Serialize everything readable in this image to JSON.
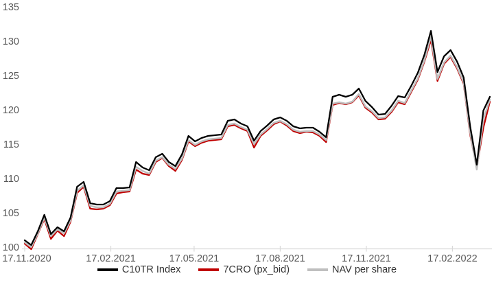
{
  "chart_data": {
    "type": "line",
    "title": "",
    "xlabel": "",
    "ylabel": "",
    "ylim": [
      100,
      135
    ],
    "y_ticks": [
      100,
      105,
      110,
      115,
      120,
      125,
      130,
      135
    ],
    "grid": false,
    "legend_position": "bottom",
    "x_axis": {
      "tick_labels": [
        "17.11.2020",
        "17.02.2021",
        "17.05.2021",
        "17.08.2021",
        "17.11.2021",
        "17.02.2022"
      ],
      "tick_day_offsets": [
        0,
        92,
        181,
        273,
        365,
        457
      ],
      "total_days": 497
    },
    "x_dates": [
      "17.11.2020",
      "24.11.2020",
      "01.12.2020",
      "08.12.2020",
      "15.12.2020",
      "22.12.2020",
      "29.12.2020",
      "05.01.2021",
      "12.01.2021",
      "19.01.2021",
      "26.01.2021",
      "02.02.2021",
      "09.02.2021",
      "16.02.2021",
      "23.02.2021",
      "02.03.2021",
      "09.03.2021",
      "16.03.2021",
      "23.03.2021",
      "30.03.2021",
      "06.04.2021",
      "13.04.2021",
      "20.04.2021",
      "27.04.2021",
      "04.05.2021",
      "11.05.2021",
      "18.05.2021",
      "25.05.2021",
      "01.06.2021",
      "08.06.2021",
      "15.06.2021",
      "22.06.2021",
      "29.06.2021",
      "06.07.2021",
      "13.07.2021",
      "20.07.2021",
      "27.07.2021",
      "03.08.2021",
      "10.08.2021",
      "17.08.2021",
      "24.08.2021",
      "31.08.2021",
      "07.09.2021",
      "14.09.2021",
      "21.09.2021",
      "28.09.2021",
      "05.10.2021",
      "12.10.2021",
      "19.10.2021",
      "26.10.2021",
      "02.11.2021",
      "09.11.2021",
      "16.11.2021",
      "23.11.2021",
      "30.11.2021",
      "07.12.2021",
      "14.12.2021",
      "21.12.2021",
      "28.12.2021",
      "04.01.2022",
      "11.01.2022",
      "18.01.2022",
      "25.01.2022",
      "01.02.2022",
      "08.02.2022",
      "15.02.2022",
      "22.02.2022",
      "01.03.2022",
      "08.03.2022",
      "15.03.2022",
      "22.03.2022",
      "29.03.2022"
    ],
    "series": [
      {
        "name": "C10TR Index",
        "color": "#000000",
        "stroke_width": 2.3,
        "values": [
          101.0,
          100.3,
          102.3,
          104.7,
          101.9,
          102.9,
          102.3,
          104.3,
          108.8,
          109.5,
          106.4,
          106.2,
          106.2,
          106.7,
          108.6,
          108.6,
          108.7,
          112.4,
          111.6,
          111.2,
          113.1,
          113.6,
          112.4,
          111.8,
          113.5,
          116.2,
          115.4,
          115.9,
          116.2,
          116.3,
          116.4,
          118.4,
          118.6,
          118.0,
          117.6,
          115.5,
          116.9,
          117.7,
          118.6,
          118.9,
          118.4,
          117.6,
          117.3,
          117.4,
          117.4,
          116.8,
          116.0,
          121.9,
          122.2,
          121.9,
          122.2,
          123.1,
          121.3,
          120.4,
          119.3,
          119.4,
          120.6,
          122.0,
          121.8,
          123.5,
          125.4,
          128.0,
          131.5,
          125.5,
          127.8,
          128.7,
          127.0,
          124.7,
          117.5,
          112.0,
          119.9,
          121.9
        ]
      },
      {
        "name": "7CRO (px_bid)",
        "color": "#C00000",
        "stroke_width": 2.3,
        "values": [
          100.5,
          99.7,
          101.9,
          104.1,
          101.2,
          102.4,
          101.6,
          103.7,
          107.9,
          108.8,
          105.6,
          105.5,
          105.6,
          106.1,
          107.8,
          108.0,
          108.1,
          111.3,
          110.7,
          110.5,
          112.4,
          113.0,
          111.8,
          111.1,
          112.7,
          115.4,
          114.7,
          115.2,
          115.5,
          115.6,
          115.7,
          117.6,
          117.8,
          117.3,
          116.9,
          114.5,
          116.2,
          117.0,
          117.9,
          118.3,
          117.7,
          116.9,
          116.6,
          116.8,
          116.7,
          116.2,
          115.3,
          120.7,
          121.0,
          120.8,
          121.1,
          122.1,
          120.3,
          119.6,
          118.6,
          118.7,
          119.7,
          121.1,
          120.8,
          122.6,
          124.4,
          127.0,
          130.2,
          124.2,
          126.7,
          127.7,
          126.0,
          123.8,
          116.3,
          111.6,
          117.4,
          121.2
        ]
      },
      {
        "name": "NAV per share",
        "color": "#BFBFBF",
        "stroke_width": 2.5,
        "values": [
          100.7,
          100.0,
          102.0,
          104.3,
          101.6,
          102.6,
          102.0,
          103.9,
          108.2,
          109.0,
          106.0,
          105.8,
          105.8,
          106.3,
          108.1,
          108.2,
          108.3,
          111.7,
          111.1,
          110.7,
          112.6,
          113.1,
          112.0,
          111.4,
          112.9,
          115.6,
          114.9,
          115.4,
          115.7,
          115.8,
          115.9,
          117.8,
          118.0,
          117.5,
          117.1,
          115.0,
          116.4,
          117.2,
          118.1,
          118.4,
          117.9,
          117.1,
          116.8,
          116.9,
          116.9,
          116.4,
          115.6,
          120.9,
          121.1,
          120.9,
          121.2,
          122.3,
          120.5,
          119.8,
          118.8,
          118.9,
          119.9,
          121.3,
          121.0,
          122.8,
          124.6,
          127.2,
          130.7,
          124.5,
          126.9,
          127.9,
          126.2,
          124.0,
          116.6,
          111.3,
          118.6,
          121.5
        ]
      }
    ],
    "draw_order": [
      "7CRO (px_bid)",
      "NAV per share",
      "C10TR Index"
    ]
  },
  "legend": {
    "items": [
      {
        "label": "C10TR Index",
        "color": "#000000"
      },
      {
        "label": "7CRO (px_bid)",
        "color": "#C00000"
      },
      {
        "label": "NAV per share",
        "color": "#BFBFBF"
      }
    ]
  },
  "colors": {
    "background": "#FFFFFF",
    "axis_line": "#D9D9D9",
    "tick_mark": "#D9D9D9",
    "axis_text": "#595959",
    "legend_text": "#333333"
  }
}
